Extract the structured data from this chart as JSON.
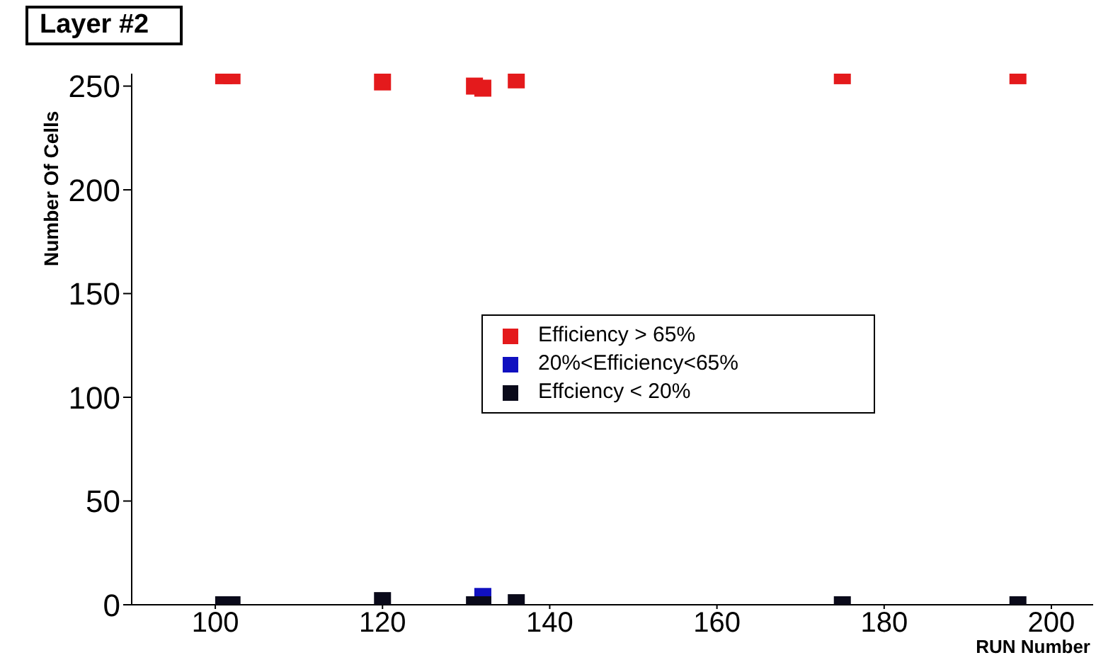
{
  "chart_data": {
    "type": "scatter",
    "title": "Layer #2",
    "xlabel": "RUN Number",
    "ylabel": "Number Of Cells",
    "xlim": [
      90,
      205
    ],
    "xticks": [
      100,
      120,
      140,
      160,
      180,
      200
    ],
    "ylim": [
      0,
      256
    ],
    "yticks": [
      0,
      50,
      100,
      150,
      200,
      250
    ],
    "grid": false,
    "legend": "center",
    "marker": "square",
    "series": [
      {
        "name": "Efficiency > 65%",
        "color": "#e41a1c",
        "x": [
          101,
          102,
          120,
          131,
          132,
          136,
          175,
          196
        ],
        "values": [
          255,
          255,
          252,
          250,
          249,
          253,
          255,
          255
        ]
      },
      {
        "name": "20%<Efficiency<65%",
        "color": "#1010c0",
        "x": [
          132
        ],
        "values": [
          4
        ]
      },
      {
        "name": "Effciency < 20%",
        "color": "#0a0a1a",
        "x": [
          101,
          102,
          120,
          131,
          132,
          136,
          175,
          196
        ],
        "values": [
          0,
          0,
          2,
          0,
          0,
          1,
          0,
          0
        ]
      }
    ]
  }
}
